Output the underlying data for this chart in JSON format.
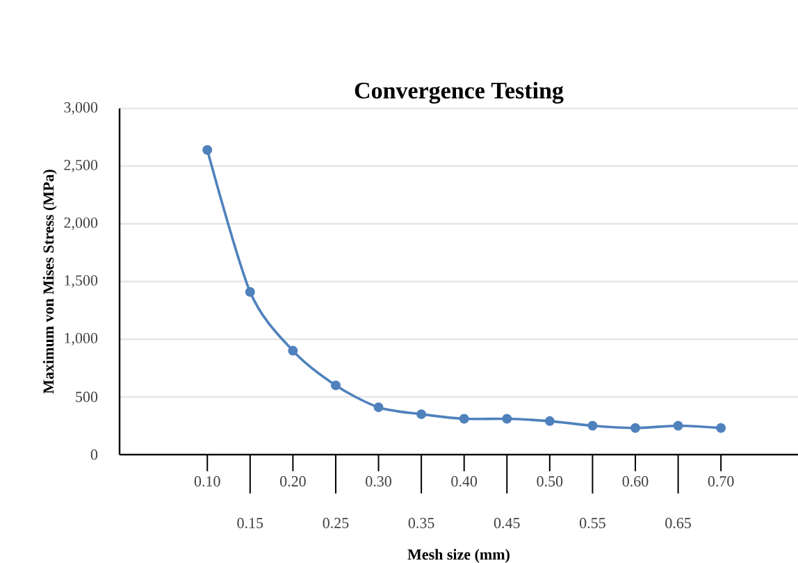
{
  "chart_data": {
    "type": "line",
    "title": "Convergence Testing",
    "xlabel": "Mesh size (mm)",
    "ylabel": "Maximum von Mises Stress (MPa)",
    "categories": [
      "0.10",
      "0.15",
      "0.20",
      "0.25",
      "0.30",
      "0.35",
      "0.40",
      "0.45",
      "0.50",
      "0.55",
      "0.60",
      "0.65",
      "0.70"
    ],
    "series": [
      {
        "color": "#4f81bd",
        "values": [
          2640,
          1410,
          900,
          600,
          410,
          350,
          310,
          310,
          290,
          250,
          230,
          250,
          230
        ]
      }
    ],
    "ylim": [
      0,
      3000
    ],
    "yticks": [
      0,
      500,
      {
        "value": 1000,
        "label": "1,000"
      },
      {
        "value": 1500,
        "label": "1,500"
      },
      {
        "value": 2000,
        "label": "2,000"
      },
      {
        "value": 2500,
        "label": "2,500"
      },
      {
        "value": 3000,
        "label": "3,000"
      }
    ],
    "grid": "y",
    "marker": "circle",
    "line_style": "solid"
  }
}
